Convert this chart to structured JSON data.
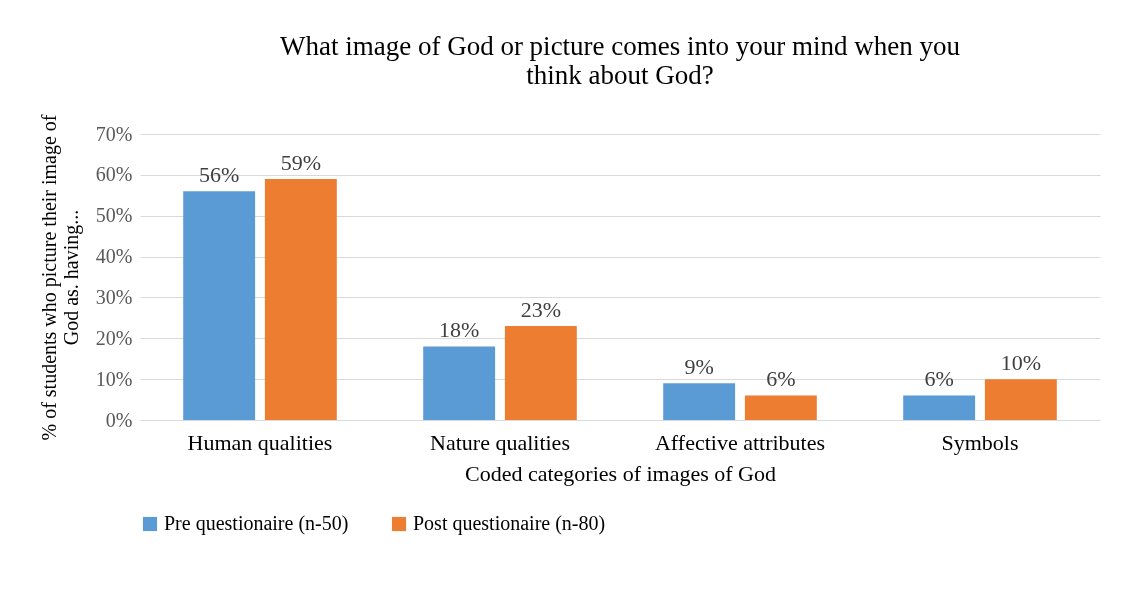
{
  "chart_data": {
    "type": "bar",
    "title": "What image of God or picture comes into your mind when you think about God?",
    "xlabel": "Coded categories of images of God",
    "ylabel": "% of students who picture their image of God as. having...",
    "categories": [
      "Human qualities",
      "Nature qualities",
      "Affective attributes",
      "Symbols"
    ],
    "series": [
      {
        "name": "Pre questionaire (n-50)",
        "color": "#5b9bd5",
        "values": [
          56,
          18,
          9,
          6
        ],
        "value_labels": [
          "56%",
          "18%",
          "9%",
          "6%"
        ]
      },
      {
        "name": "Post questionaire (n-80)",
        "color": "#ed7d31",
        "values": [
          59,
          23,
          6,
          10
        ],
        "value_labels": [
          "59%",
          "23%",
          "6%",
          "10%"
        ]
      }
    ],
    "ylim": [
      0,
      70
    ],
    "yticks": [
      {
        "value": 0,
        "label": "0%"
      },
      {
        "value": 10,
        "label": "10%"
      },
      {
        "value": 20,
        "label": "20%"
      },
      {
        "value": 30,
        "label": "30%"
      },
      {
        "value": 40,
        "label": "40%"
      },
      {
        "value": 50,
        "label": "50%"
      },
      {
        "value": 60,
        "label": "60%"
      },
      {
        "value": 70,
        "label": "70%"
      }
    ],
    "grid": "y",
    "legend": "bottom"
  }
}
